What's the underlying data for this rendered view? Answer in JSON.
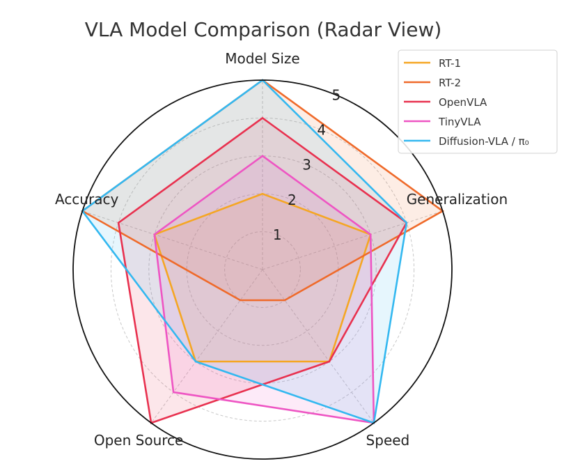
{
  "chart_data": {
    "type": "radar",
    "title": "VLA Model Comparison (Radar View)",
    "axes": [
      "Model Size",
      "Generalization",
      "Speed",
      "Open Source",
      "Accuracy"
    ],
    "rlim": [
      0,
      5
    ],
    "r_ticks": [
      "1",
      "2",
      "3",
      "4",
      "5"
    ],
    "grid": true,
    "legend_position": "top-right",
    "series": [
      {
        "name": "RT-1",
        "color": "#f5a623",
        "values": [
          2,
          3,
          3,
          3,
          3
        ]
      },
      {
        "name": "RT-2",
        "color": "#ef6a2a",
        "values": [
          5,
          5,
          1,
          1,
          5
        ]
      },
      {
        "name": "OpenVLA",
        "color": "#e8314f",
        "values": [
          4,
          4,
          3,
          5,
          4
        ]
      },
      {
        "name": "TinyVLA",
        "color": "#ee55c3",
        "values": [
          3,
          3,
          5,
          4,
          3
        ]
      },
      {
        "name": "Diffusion-VLA / π₀",
        "color": "#33b8f0",
        "values": [
          5,
          4,
          5,
          3,
          5
        ]
      }
    ]
  }
}
